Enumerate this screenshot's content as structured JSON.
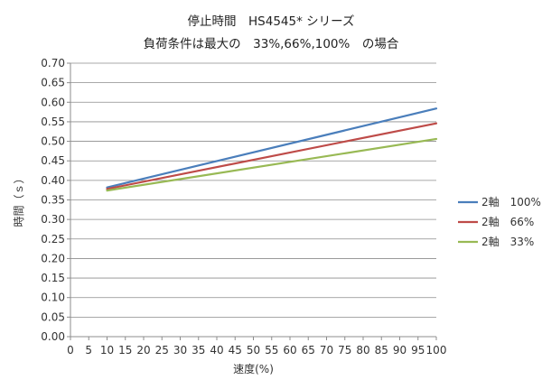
{
  "chart_data": {
    "type": "line",
    "title_lines": [
      "停止時間　HS4545* シリーズ",
      "負荷条件は最大の　33%,66%,100%　の場合"
    ],
    "xlabel": "速度(%)",
    "ylabel": "時間（ｓ）",
    "xlim": [
      0,
      100
    ],
    "ylim": [
      0,
      0.7
    ],
    "x_ticks": [
      0,
      5,
      10,
      15,
      20,
      25,
      30,
      35,
      40,
      45,
      50,
      55,
      60,
      65,
      70,
      75,
      80,
      85,
      90,
      95,
      100
    ],
    "y_ticks": [
      "0.00",
      "0.05",
      "0.10",
      "0.15",
      "0.20",
      "0.25",
      "0.30",
      "0.35",
      "0.40",
      "0.45",
      "0.50",
      "0.55",
      "0.60",
      "0.65",
      "0.70"
    ],
    "grid": "horizontal",
    "legend_position": "right",
    "series": [
      {
        "name": "2軸　100%",
        "color": "#4a7ebb",
        "x": [
          10,
          100
        ],
        "y": [
          0.382,
          0.584
        ]
      },
      {
        "name": "2軸　66%",
        "color": "#be4b48",
        "x": [
          10,
          100
        ],
        "y": [
          0.378,
          0.546
        ]
      },
      {
        "name": "2軸　33%",
        "color": "#98b954",
        "x": [
          10,
          100
        ],
        "y": [
          0.374,
          0.506
        ]
      }
    ]
  }
}
